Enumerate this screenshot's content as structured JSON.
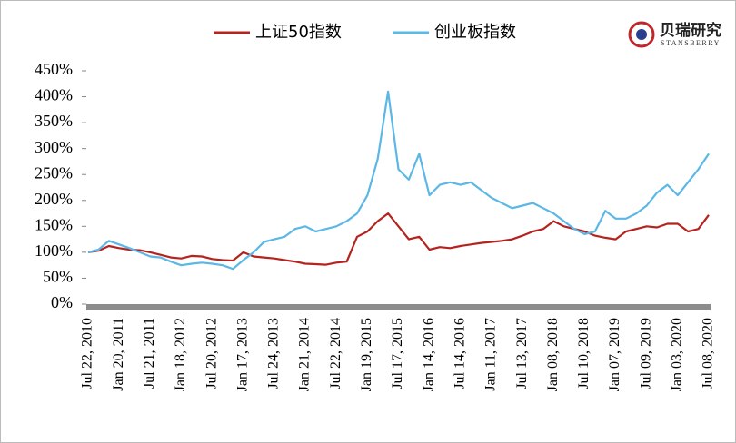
{
  "chart_data": {
    "type": "line",
    "logo": {
      "name": "贝瑞研究",
      "sub": "STANSBERRY"
    },
    "categories": [
      "Jul 22, 2010",
      null,
      null,
      "Jan 20, 2011",
      null,
      null,
      "Jul 21, 2011",
      null,
      null,
      "Jan 18, 2012",
      null,
      null,
      "Jul 20, 2012",
      null,
      null,
      "Jan 17, 2013",
      null,
      null,
      "Jul 24, 2013",
      null,
      null,
      "Jan 21, 2014",
      null,
      null,
      "Jul 22, 2014",
      null,
      null,
      "Jan 19, 2015",
      null,
      null,
      "Jul 17, 2015",
      null,
      null,
      "Jan 14, 2016",
      null,
      null,
      "Jul 14, 2016",
      null,
      null,
      "Jan 11, 2017",
      null,
      null,
      "Jul 13, 2017",
      null,
      null,
      "Jan 08, 2018",
      null,
      null,
      "Jul 10, 2018",
      null,
      null,
      "Jan 07, 2019",
      null,
      null,
      "Jul 09, 2019",
      null,
      null,
      "Jan 03, 2020",
      null,
      null,
      "Jul 08, 2020"
    ],
    "series": [
      {
        "name": "上证50指数",
        "color": "#b5231f",
        "values": [
          100,
          103,
          112,
          108,
          105,
          104,
          100,
          95,
          90,
          88,
          93,
          92,
          87,
          85,
          84,
          100,
          92,
          90,
          88,
          85,
          82,
          78,
          77,
          76,
          80,
          82,
          130,
          140,
          160,
          175,
          150,
          125,
          130,
          105,
          110,
          108,
          112,
          115,
          118,
          120,
          122,
          125,
          132,
          140,
          145,
          160,
          150,
          145,
          140,
          132,
          128,
          125,
          140,
          145,
          150,
          148,
          155,
          155,
          140,
          145,
          172
        ]
      },
      {
        "name": "创业板指数",
        "color": "#5bb7e6",
        "values": [
          100,
          105,
          122,
          115,
          108,
          100,
          92,
          90,
          82,
          75,
          78,
          80,
          78,
          75,
          68,
          85,
          100,
          120,
          125,
          130,
          145,
          150,
          140,
          145,
          150,
          160,
          175,
          210,
          280,
          410,
          260,
          240,
          290,
          210,
          230,
          235,
          230,
          235,
          220,
          205,
          195,
          185,
          190,
          195,
          185,
          175,
          160,
          145,
          135,
          140,
          180,
          165,
          165,
          175,
          190,
          215,
          230,
          210,
          235,
          260,
          290
        ]
      }
    ],
    "ylim": [
      0,
      450
    ],
    "yticks": [
      {
        "value": 0,
        "label": "0%"
      },
      {
        "value": 50,
        "label": "50%"
      },
      {
        "value": 100,
        "label": "100%"
      },
      {
        "value": 150,
        "label": "150%"
      },
      {
        "value": 200,
        "label": "200%"
      },
      {
        "value": 250,
        "label": "250%"
      },
      {
        "value": 300,
        "label": "300%"
      },
      {
        "value": 350,
        "label": "350%"
      },
      {
        "value": 400,
        "label": "400%"
      },
      {
        "value": 450,
        "label": "450%"
      }
    ],
    "legend": "top"
  }
}
